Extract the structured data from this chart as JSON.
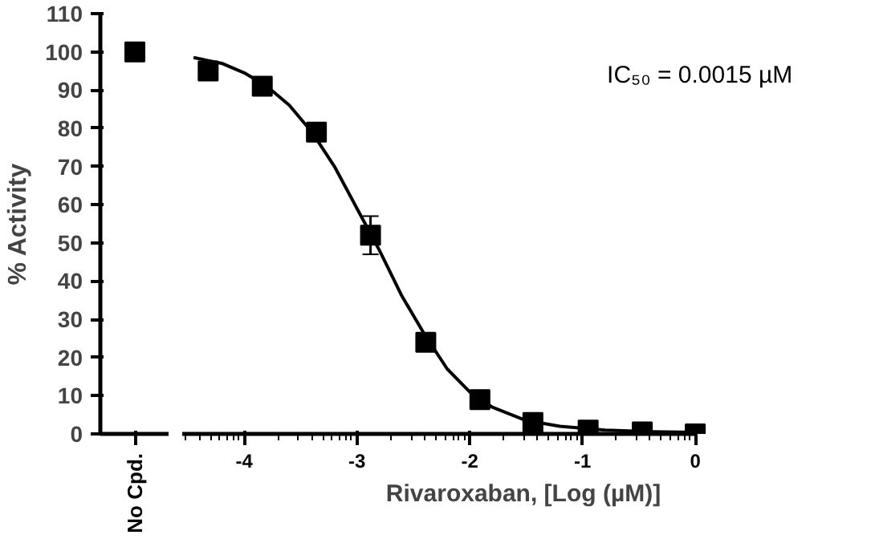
{
  "chart_data": [
    {
      "type": "scatter",
      "ylabel": "% Activity",
      "categories": [
        "No Cpd."
      ],
      "marker": "square",
      "ylim": [
        0,
        110
      ],
      "yticks": [
        0,
        10,
        20,
        30,
        40,
        50,
        60,
        70,
        80,
        90,
        100,
        110
      ],
      "series": [
        {
          "color": "#000000",
          "values": [
            100
          ]
        }
      ]
    },
    {
      "type": "scatter",
      "xlabel": "Rivaroxaban, [Log (µM)]",
      "marker": "square",
      "tick_labels": "x",
      "ylim": [
        0,
        110
      ],
      "xlim": [
        -4.55,
        0
      ],
      "xticks": [
        -4,
        -3,
        -2,
        -1,
        0,
        {
          "value": -4.52,
          "label": null
        },
        {
          "value": -4.4,
          "label": null
        },
        {
          "value": -4.3,
          "label": null
        },
        {
          "value": -4.22,
          "label": null
        },
        {
          "value": -4.15,
          "label": null
        },
        {
          "value": -4.1,
          "label": null
        },
        {
          "value": -4.05,
          "label": null
        },
        {
          "value": -3.7,
          "label": null
        },
        {
          "value": -3.52,
          "label": null
        },
        {
          "value": -3.4,
          "label": null
        },
        {
          "value": -3.3,
          "label": null
        },
        {
          "value": -3.22,
          "label": null
        },
        {
          "value": -3.15,
          "label": null
        },
        {
          "value": -3.1,
          "label": null
        },
        {
          "value": -3.05,
          "label": null
        },
        {
          "value": -2.7,
          "label": null
        },
        {
          "value": -2.52,
          "label": null
        },
        {
          "value": -2.4,
          "label": null
        },
        {
          "value": -2.3,
          "label": null
        },
        {
          "value": -2.22,
          "label": null
        },
        {
          "value": -2.15,
          "label": null
        },
        {
          "value": -2.1,
          "label": null
        },
        {
          "value": -2.05,
          "label": null
        },
        {
          "value": -1.7,
          "label": null
        },
        {
          "value": -1.52,
          "label": null
        },
        {
          "value": -1.4,
          "label": null
        },
        {
          "value": -1.3,
          "label": null
        },
        {
          "value": -1.22,
          "label": null
        },
        {
          "value": -1.15,
          "label": null
        },
        {
          "value": -1.1,
          "label": null
        },
        {
          "value": -1.05,
          "label": null
        },
        {
          "value": -0.7,
          "label": null
        },
        {
          "value": -0.52,
          "label": null
        },
        {
          "value": -0.4,
          "label": null
        },
        {
          "value": -0.3,
          "label": null
        },
        {
          "value": -0.22,
          "label": null
        },
        {
          "value": -0.15,
          "label": null
        },
        {
          "value": -0.1,
          "label": null
        },
        {
          "value": -0.05,
          "label": null
        }
      ],
      "annotations": [
        "IC₅₀ = 0.0015 µM"
      ],
      "x": [
        -4.32,
        -3.84,
        -3.36,
        -2.88,
        -2.39,
        -1.91,
        -1.44,
        -0.95,
        -0.47,
        0
      ],
      "series": [
        {
          "type": "line",
          "marker": "none",
          "color": "#000000",
          "x": [
            -4.45,
            -4.2,
            -4.0,
            -3.8,
            -3.6,
            -3.4,
            -3.2,
            -3.0,
            -2.8,
            -2.6,
            -2.4,
            -2.2,
            -2.0,
            -1.8,
            -1.5,
            -1.2,
            -0.8,
            -0.4,
            0
          ],
          "values": [
            98.5,
            97,
            94.5,
            91,
            86,
            79,
            70,
            59,
            48,
            36,
            26,
            17,
            11,
            7,
            3.5,
            2,
            1,
            0.6,
            0.4
          ]
        },
        {
          "color": "#000000",
          "values": [
            95,
            91,
            79,
            52,
            24,
            9,
            3,
            1,
            0.5,
            0
          ],
          "errors": [
            null,
            null,
            null,
            5,
            null,
            null,
            null,
            null,
            null,
            null
          ]
        }
      ]
    }
  ]
}
